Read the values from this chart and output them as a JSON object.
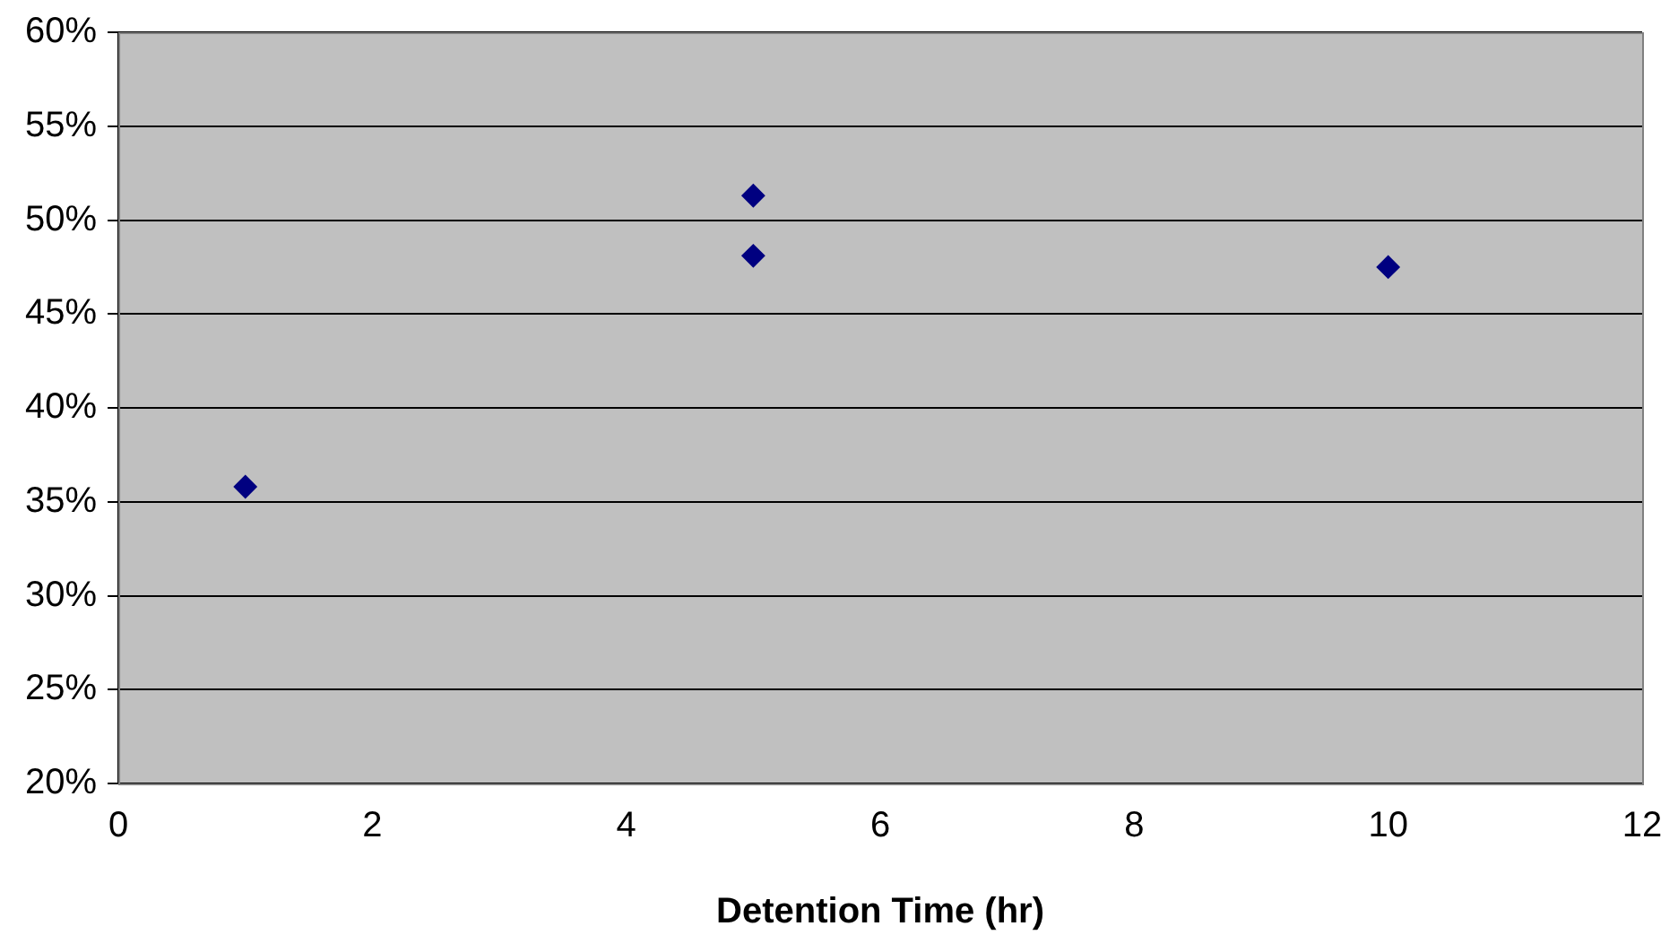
{
  "chart_data": {
    "type": "scatter",
    "xlabel": "Detention Time (hr)",
    "x": [
      1,
      5,
      5,
      10
    ],
    "series": [
      {
        "color": "#000080",
        "values": [
          35.8,
          51.3,
          48.1,
          47.5
        ]
      }
    ],
    "xlim": [
      0,
      12
    ],
    "xticks": [
      0,
      2,
      4,
      6,
      8,
      10,
      12
    ],
    "ylim": [
      20,
      60
    ],
    "yticks": [
      {
        "value": 20,
        "label": "20%"
      },
      {
        "value": 25,
        "label": "25%"
      },
      {
        "value": 30,
        "label": "30%"
      },
      {
        "value": 35,
        "label": "35%"
      },
      {
        "value": 40,
        "label": "40%"
      },
      {
        "value": 45,
        "label": "45%"
      },
      {
        "value": 50,
        "label": "50%"
      },
      {
        "value": 55,
        "label": "55%"
      },
      {
        "value": 60,
        "label": "60%"
      }
    ],
    "grid": "y",
    "marker": "diamond",
    "legend": false
  }
}
